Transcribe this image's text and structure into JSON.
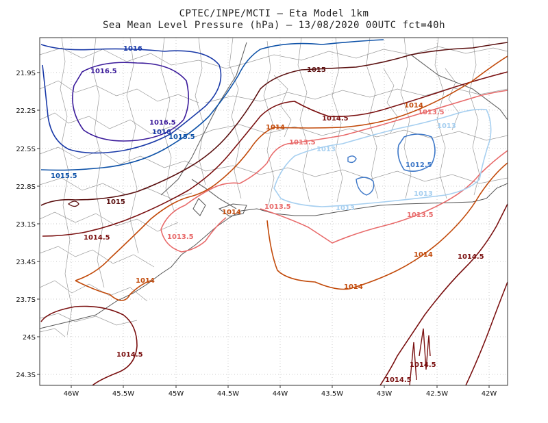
{
  "title_line1": "CPTEC/INPE/MCTI  –   Eta Model 1km",
  "title_line2": "Sea Mean Level Pressure (hPa) – 13/08/2020 00UTC fct=40h",
  "colors": {
    "c1016_5": "#3a1a9a",
    "c1016": "#1a3aa8",
    "c1015_5": "#0e52a8",
    "c1015": "#5a0f0f",
    "c1014_5": "#7a1010",
    "c1014": "#c24a0a",
    "c1013_5": "#e86a6a",
    "c1013": "#a6cff0",
    "c1012_5": "#3e78c8",
    "border": "#9a9a9a",
    "coast": "#555555"
  },
  "axes": {
    "x_ticks": [
      "46W",
      "45.5W",
      "45W",
      "44.5W",
      "44W",
      "43.5W",
      "43W",
      "42.5W",
      "42W"
    ],
    "y_ticks": [
      "21.9S",
      "22.2S",
      "22.5S",
      "22.8S",
      "23.1S",
      "23.4S",
      "23.7S",
      "24S",
      "24.3S"
    ]
  },
  "contour_labels": {
    "l1016_a": "1016",
    "l1016_5_a": "1016.5",
    "l1016_5_b": "1016.5",
    "l1016_b": "1016",
    "l1015_5_a": "1015.5",
    "l1015_5_b": "1015.5",
    "l1015_a": "1015",
    "l1015_b": "1015",
    "l1014_5_a": "1014.5",
    "l1014_5_b": "1014.5",
    "l1014_5_c": "1014.5",
    "l1014_5_d": "1014.5",
    "l1014_5_e": "1014.5",
    "l1014_5_f": "1014.5",
    "l1014_a": "1014",
    "l1014_b": "1014",
    "l1014_c": "1014",
    "l1014_d": "1014",
    "l1014_e": "1014",
    "l1014_f": "1014",
    "l1013_5_a": "1013.5",
    "l1013_5_b": "1013.5",
    "l1013_5_c": "1013.5",
    "l1013_5_d": "1013.5",
    "l1013_5_e": "1013.5",
    "l1013_a": "1013",
    "l1013_b": "1013",
    "l1013_c": "1013",
    "l1013_d": "1013",
    "l1012_5": "1012.5"
  }
}
